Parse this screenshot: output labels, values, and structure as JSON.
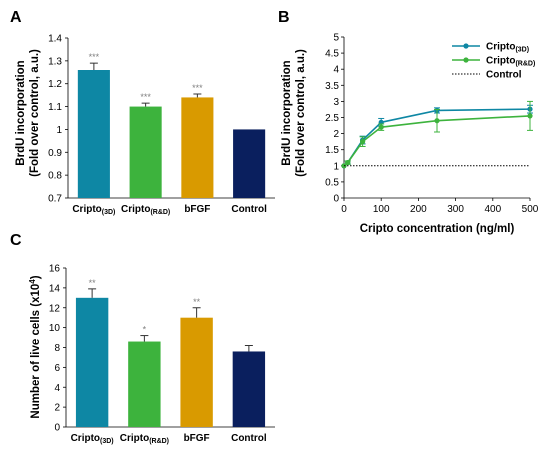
{
  "panel_labels": {
    "a": "A",
    "b": "B",
    "c": "C"
  },
  "colors": {
    "cripto_3d": "#0E87A4",
    "cripto_rd": "#3DB33D",
    "bfgf": "#D99A00",
    "control": "#0A1F5E",
    "error": "#333333",
    "sig": "#7F7F7F"
  },
  "chart_data": [
    {
      "id": "A",
      "type": "bar",
      "categories": [
        {
          "main": "Cripto",
          "sub": "(3D)"
        },
        {
          "main": "Cripto",
          "sub": "(R&D)"
        },
        {
          "main": "bFGF",
          "sub": ""
        },
        {
          "main": "Control",
          "sub": ""
        }
      ],
      "values": [
        1.26,
        1.1,
        1.14,
        1.0
      ],
      "errors": [
        0.03,
        0.015,
        0.015,
        0
      ],
      "significance": [
        "***",
        "***",
        "***",
        ""
      ],
      "ylabel_lines": [
        "BrdU incorporation",
        "(Fold over control, a.u.)"
      ],
      "yticks": [
        "0.7",
        "0.8",
        "0.9",
        "1",
        "1.1",
        "1.2",
        "1.3",
        "1.4"
      ],
      "ylim": [
        0.7,
        1.4
      ]
    },
    {
      "id": "B",
      "type": "line",
      "x": [
        0,
        10,
        50,
        100,
        250,
        500
      ],
      "series": [
        {
          "name_main": "Cripto",
          "name_sub": "(3D)",
          "values": [
            1.0,
            1.1,
            1.8,
            2.35,
            2.72,
            2.76
          ],
          "errors": [
            0,
            0.05,
            0.12,
            0.12,
            0.08,
            0.12
          ]
        },
        {
          "name_main": "Cripto",
          "name_sub": "(R&D)",
          "values": [
            1.0,
            1.1,
            1.75,
            2.2,
            2.4,
            2.55
          ],
          "errors": [
            0,
            0.05,
            0.15,
            0.1,
            0.35,
            0.45
          ]
        },
        {
          "name": "Control",
          "values": [
            1,
            1,
            1,
            1,
            1,
            1
          ],
          "style": "dotted"
        }
      ],
      "xticks": [
        "0",
        "100",
        "200",
        "300",
        "400",
        "500"
      ],
      "yticks": [
        "0",
        "0.5",
        "1",
        "1.5",
        "2",
        "2.5",
        "3",
        "3.5",
        "4",
        "4.5",
        "5"
      ],
      "xlim": [
        0,
        500
      ],
      "ylim": [
        0,
        5
      ],
      "xlabel": "Cripto concentration (ng/ml)",
      "ylabel_lines": [
        "BrdU incorporation",
        "(Fold over control, a.u.)"
      ],
      "legend_position": "top-right"
    },
    {
      "id": "C",
      "type": "bar",
      "categories": [
        {
          "main": "Cripto",
          "sub": "(3D)"
        },
        {
          "main": "Cripto",
          "sub": "(R&D)"
        },
        {
          "main": "bFGF",
          "sub": ""
        },
        {
          "main": "Control",
          "sub": ""
        }
      ],
      "values": [
        13.0,
        8.6,
        11.0,
        7.6
      ],
      "errors": [
        0.9,
        0.6,
        1.0,
        0.6
      ],
      "significance": [
        "**",
        "*",
        "**",
        ""
      ],
      "ylabel_main": "Number of live cells (x10",
      "ylabel_sup": "4",
      "ylabel_end": ")",
      "yticks": [
        "0",
        "2",
        "4",
        "6",
        "8",
        "10",
        "12",
        "14",
        "16"
      ],
      "ylim": [
        0,
        16
      ]
    }
  ]
}
